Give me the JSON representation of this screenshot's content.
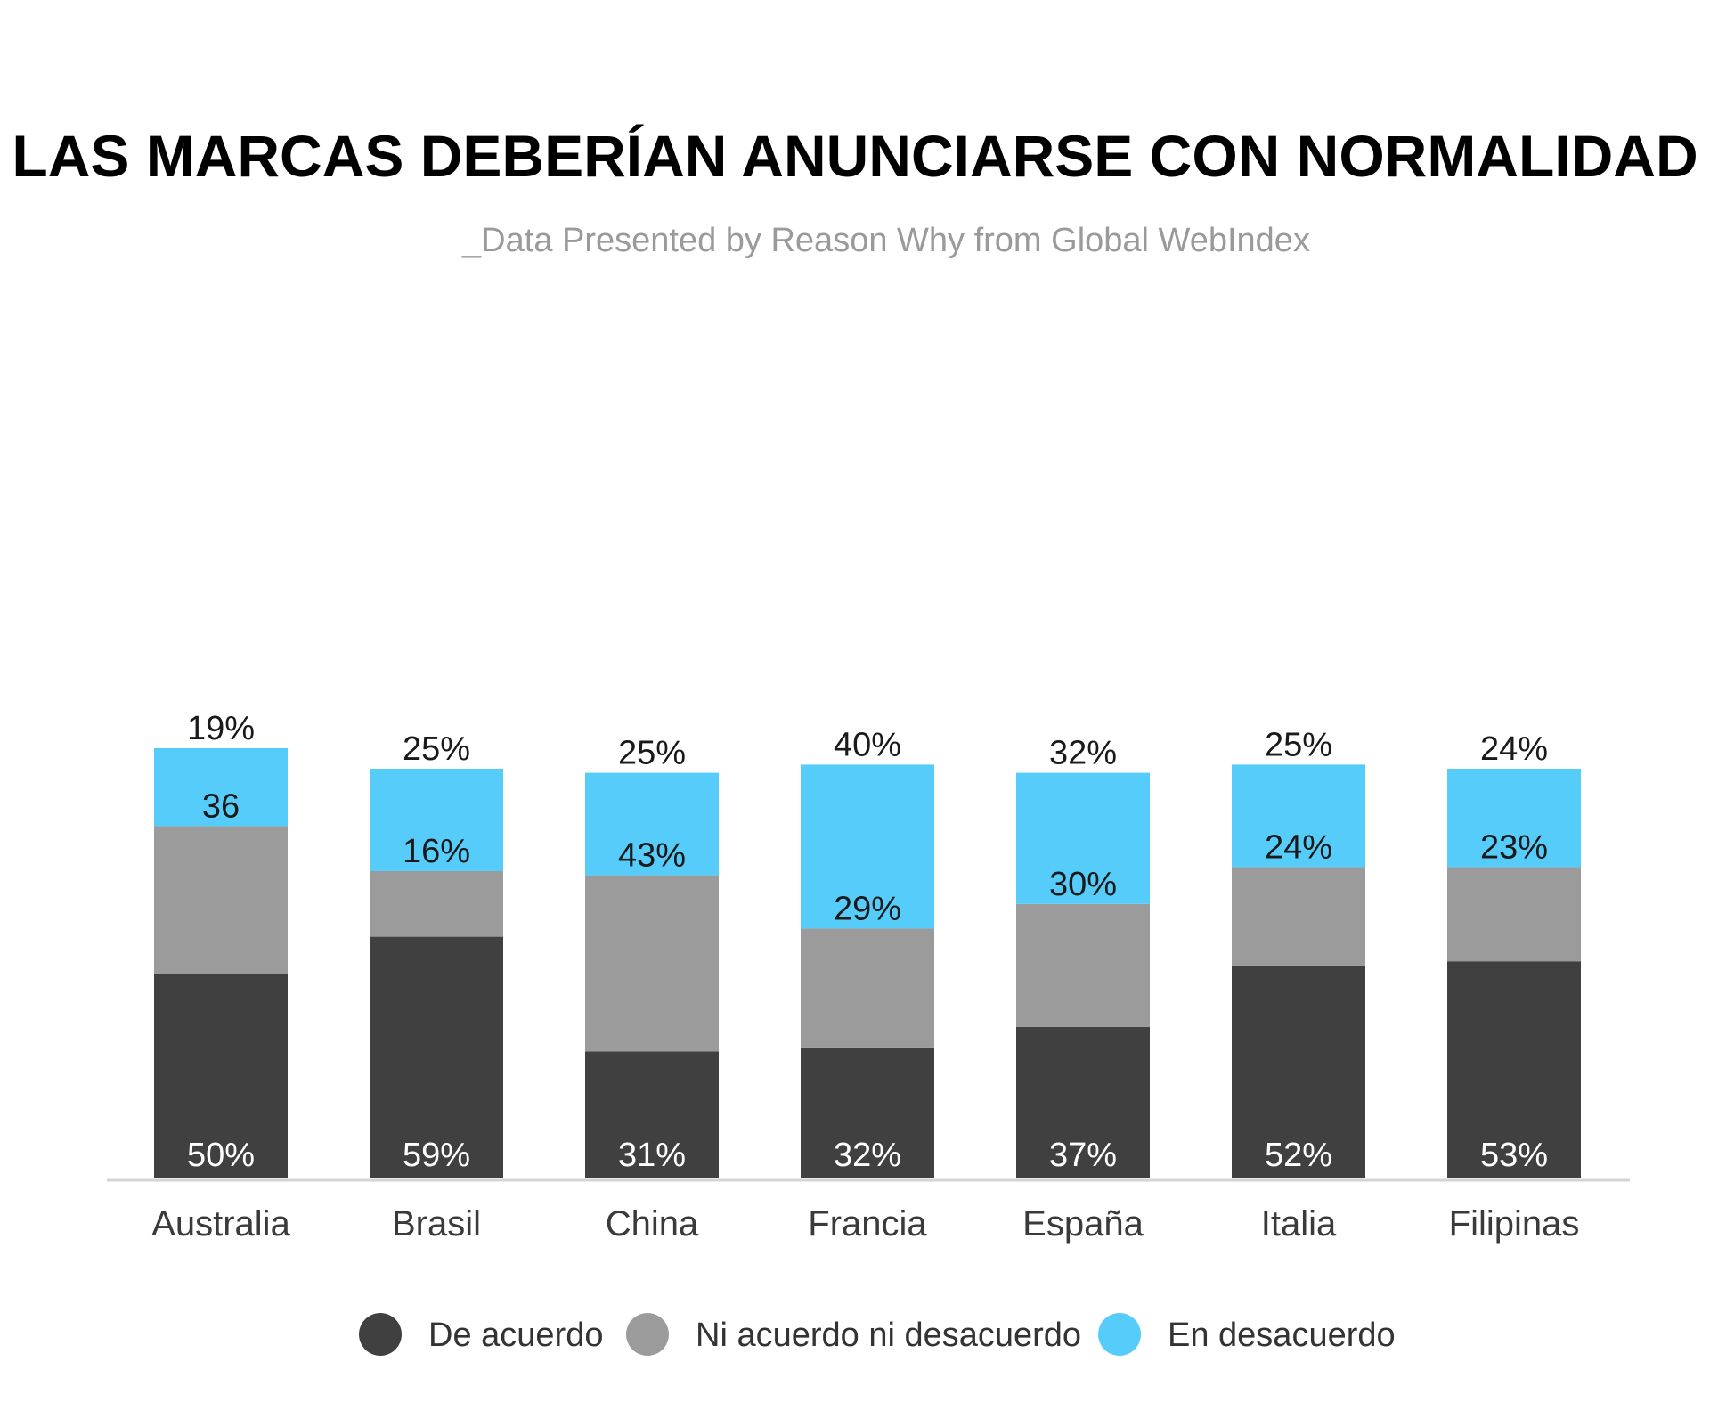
{
  "chart_data": {
    "type": "bar",
    "stacked": true,
    "title": "LAS MARCAS DEBERÍAN ANUNCIARSE CON NORMALIDAD",
    "subtitle": "_Data Presented by Reason Why from Global WebIndex",
    "categories": [
      "Australia",
      "Brasil",
      "China",
      "Francia",
      "España",
      "Italia",
      "Filipinas"
    ],
    "series": [
      {
        "name": "De acuerdo",
        "color": "#404040",
        "label_color": "#ffffff",
        "values": [
          50,
          59,
          31,
          32,
          37,
          52,
          53
        ],
        "labels": [
          "50%",
          "59%",
          "31%",
          "32%",
          "37%",
          "52%",
          "53%"
        ]
      },
      {
        "name": "Ni acuerdo ni desacuerdo",
        "color": "#9b9b9b",
        "label_color": "#1a1a1a",
        "values": [
          36,
          16,
          43,
          29,
          30,
          24,
          23
        ],
        "labels": [
          "36",
          "16%",
          "43%",
          "29%",
          "30%",
          "24%",
          "23%"
        ]
      },
      {
        "name": "En desacuerdo",
        "color": "#56ccfb",
        "label_color": "#1a1a1a",
        "values": [
          19,
          25,
          25,
          40,
          32,
          25,
          24
        ],
        "labels": [
          "19%",
          "25%",
          "25%",
          "40%",
          "32%",
          "25%",
          "24%"
        ]
      }
    ],
    "ylim": [
      0,
      105
    ],
    "grid": false,
    "legend": "bottom"
  }
}
